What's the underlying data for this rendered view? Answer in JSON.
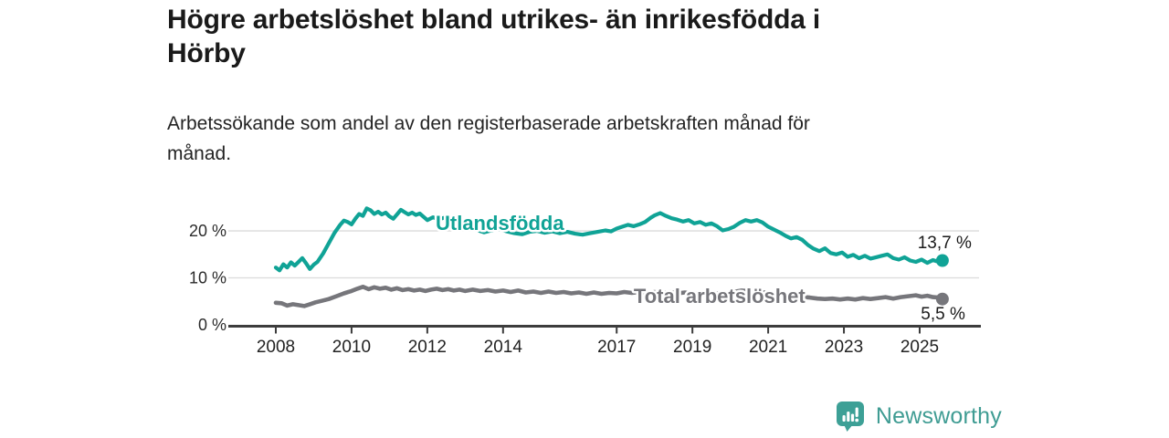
{
  "header": {
    "title_line1": "Högre arbetslöshet bland utrikes- än inrikesfödda i",
    "title_line2": "Hörby",
    "subtitle_line1": "Arbetssökande som andel av den registerbaserade arbetskraften månad för",
    "subtitle_line2": "månad."
  },
  "footer": {
    "brand": "Newsworthy",
    "brand_color": "#3F9C93"
  },
  "chart_data": {
    "type": "line",
    "title": "Högre arbetslöshet bland utrikes- än inrikesfödda i Hörby",
    "subtitle": "Arbetssökande som andel av den registerbaserade arbetskraften månad för månad.",
    "unit": "%",
    "grid": "horizontal-only",
    "legend_position": "inline-labels-on-lines",
    "y_axis": {
      "range": [
        0,
        26
      ],
      "ticks": [
        {
          "value": 0,
          "label": "0 %"
        },
        {
          "value": 10,
          "label": "10 %"
        },
        {
          "value": 20,
          "label": "20 %"
        }
      ]
    },
    "x_axis": {
      "range_years": [
        2006.8,
        2026.6
      ],
      "ticks": [
        {
          "value": 2008,
          "label": "2008"
        },
        {
          "value": 2010,
          "label": "2010"
        },
        {
          "value": 2012,
          "label": "2012"
        },
        {
          "value": 2014,
          "label": "2014"
        },
        {
          "value": 2017,
          "label": "2017"
        },
        {
          "value": 2019,
          "label": "2019"
        },
        {
          "value": 2021,
          "label": "2021"
        },
        {
          "value": 2023,
          "label": "2023"
        },
        {
          "value": 2025,
          "label": "2025"
        }
      ]
    },
    "series": [
      {
        "id": "utlandsfodda",
        "name": "Utlandsfödda",
        "color": "#10A396",
        "line_width": 4.2,
        "end_label": "13,7 %",
        "end_value": 13.7,
        "label_anchor": [
          2012.22,
          20.2
        ],
        "end_label_offset": [
          32,
          -13.5
        ],
        "points": [
          [
            2008.0,
            12.2
          ],
          [
            2008.1,
            11.6
          ],
          [
            2008.2,
            12.9
          ],
          [
            2008.3,
            12.2
          ],
          [
            2008.4,
            13.3
          ],
          [
            2008.5,
            12.6
          ],
          [
            2008.6,
            13.4
          ],
          [
            2008.7,
            14.2
          ],
          [
            2008.8,
            13.1
          ],
          [
            2008.9,
            11.9
          ],
          [
            2009.0,
            12.8
          ],
          [
            2009.1,
            13.4
          ],
          [
            2009.25,
            15.2
          ],
          [
            2009.4,
            17.4
          ],
          [
            2009.55,
            19.6
          ],
          [
            2009.7,
            21.3
          ],
          [
            2009.8,
            22.2
          ],
          [
            2009.9,
            21.9
          ],
          [
            2010.0,
            21.4
          ],
          [
            2010.1,
            22.6
          ],
          [
            2010.2,
            23.6
          ],
          [
            2010.3,
            23.2
          ],
          [
            2010.4,
            24.8
          ],
          [
            2010.5,
            24.4
          ],
          [
            2010.6,
            23.6
          ],
          [
            2010.7,
            24.1
          ],
          [
            2010.8,
            23.5
          ],
          [
            2010.9,
            23.9
          ],
          [
            2011.0,
            23.1
          ],
          [
            2011.1,
            22.6
          ],
          [
            2011.2,
            23.5
          ],
          [
            2011.3,
            24.5
          ],
          [
            2011.4,
            24.0
          ],
          [
            2011.5,
            23.5
          ],
          [
            2011.6,
            23.9
          ],
          [
            2011.7,
            23.4
          ],
          [
            2011.8,
            23.7
          ],
          [
            2011.9,
            23.0
          ],
          [
            2012.0,
            22.3
          ],
          [
            2012.15,
            22.9
          ],
          [
            2012.3,
            22.5
          ],
          [
            2012.45,
            22.8
          ],
          [
            2012.6,
            22.3
          ],
          [
            2012.75,
            21.9
          ],
          [
            2012.9,
            21.3
          ],
          [
            2013.1,
            20.7
          ],
          [
            2013.3,
            20.2
          ],
          [
            2013.5,
            19.7
          ],
          [
            2013.7,
            20.1
          ],
          [
            2013.9,
            20.4
          ],
          [
            2014.1,
            19.9
          ],
          [
            2014.3,
            19.5
          ],
          [
            2014.5,
            19.3
          ],
          [
            2014.7,
            19.8
          ],
          [
            2014.9,
            20.0
          ],
          [
            2015.1,
            19.6
          ],
          [
            2015.3,
            19.9
          ],
          [
            2015.5,
            19.5
          ],
          [
            2015.7,
            19.8
          ],
          [
            2015.9,
            19.4
          ],
          [
            2016.1,
            19.2
          ],
          [
            2016.3,
            19.5
          ],
          [
            2016.5,
            19.8
          ],
          [
            2016.7,
            20.1
          ],
          [
            2016.85,
            19.9
          ],
          [
            2017.0,
            20.5
          ],
          [
            2017.15,
            20.9
          ],
          [
            2017.3,
            21.3
          ],
          [
            2017.45,
            21.0
          ],
          [
            2017.6,
            21.4
          ],
          [
            2017.75,
            21.9
          ],
          [
            2017.9,
            22.8
          ],
          [
            2018.0,
            23.3
          ],
          [
            2018.15,
            23.8
          ],
          [
            2018.3,
            23.2
          ],
          [
            2018.45,
            22.7
          ],
          [
            2018.6,
            22.4
          ],
          [
            2018.75,
            22.0
          ],
          [
            2018.9,
            22.3
          ],
          [
            2019.05,
            21.6
          ],
          [
            2019.2,
            21.9
          ],
          [
            2019.35,
            21.3
          ],
          [
            2019.5,
            21.6
          ],
          [
            2019.65,
            21.0
          ],
          [
            2019.8,
            20.1
          ],
          [
            2019.95,
            20.4
          ],
          [
            2020.1,
            20.9
          ],
          [
            2020.25,
            21.7
          ],
          [
            2020.4,
            22.3
          ],
          [
            2020.55,
            22.0
          ],
          [
            2020.7,
            22.3
          ],
          [
            2020.85,
            21.8
          ],
          [
            2021.0,
            20.9
          ],
          [
            2021.15,
            20.3
          ],
          [
            2021.3,
            19.7
          ],
          [
            2021.45,
            19.0
          ],
          [
            2021.6,
            18.4
          ],
          [
            2021.75,
            18.7
          ],
          [
            2021.9,
            18.1
          ],
          [
            2022.05,
            17.0
          ],
          [
            2022.2,
            16.2
          ],
          [
            2022.35,
            15.7
          ],
          [
            2022.5,
            16.3
          ],
          [
            2022.65,
            15.3
          ],
          [
            2022.8,
            15.0
          ],
          [
            2022.95,
            15.4
          ],
          [
            2023.1,
            14.5
          ],
          [
            2023.25,
            14.9
          ],
          [
            2023.4,
            14.2
          ],
          [
            2023.55,
            14.7
          ],
          [
            2023.7,
            14.1
          ],
          [
            2023.85,
            14.4
          ],
          [
            2024.0,
            14.7
          ],
          [
            2024.15,
            15.0
          ],
          [
            2024.3,
            14.2
          ],
          [
            2024.45,
            13.9
          ],
          [
            2024.6,
            14.4
          ],
          [
            2024.75,
            13.7
          ],
          [
            2024.9,
            13.4
          ],
          [
            2025.05,
            13.9
          ],
          [
            2025.2,
            13.2
          ],
          [
            2025.35,
            13.8
          ],
          [
            2025.5,
            13.4
          ],
          [
            2025.6,
            13.7
          ]
        ]
      },
      {
        "id": "total-arbetsloshet",
        "name": "Total arbetslöshet",
        "color": "#76767B",
        "line_width": 4.6,
        "end_label": "5,5 %",
        "end_value": 5.5,
        "label_anchor": [
          2017.45,
          4.66
        ],
        "end_label_offset": [
          25,
          22.3
        ],
        "points": [
          [
            2008.0,
            4.7
          ],
          [
            2008.15,
            4.6
          ],
          [
            2008.3,
            4.1
          ],
          [
            2008.45,
            4.4
          ],
          [
            2008.6,
            4.2
          ],
          [
            2008.75,
            4.0
          ],
          [
            2008.9,
            4.4
          ],
          [
            2009.05,
            4.8
          ],
          [
            2009.2,
            5.1
          ],
          [
            2009.4,
            5.5
          ],
          [
            2009.6,
            6.1
          ],
          [
            2009.8,
            6.7
          ],
          [
            2010.0,
            7.2
          ],
          [
            2010.15,
            7.7
          ],
          [
            2010.3,
            8.1
          ],
          [
            2010.45,
            7.6
          ],
          [
            2010.6,
            8.0
          ],
          [
            2010.75,
            7.7
          ],
          [
            2010.9,
            7.9
          ],
          [
            2011.05,
            7.5
          ],
          [
            2011.2,
            7.8
          ],
          [
            2011.35,
            7.4
          ],
          [
            2011.5,
            7.6
          ],
          [
            2011.65,
            7.3
          ],
          [
            2011.8,
            7.5
          ],
          [
            2011.95,
            7.2
          ],
          [
            2012.1,
            7.5
          ],
          [
            2012.25,
            7.7
          ],
          [
            2012.4,
            7.4
          ],
          [
            2012.55,
            7.6
          ],
          [
            2012.7,
            7.3
          ],
          [
            2012.85,
            7.5
          ],
          [
            2013.0,
            7.2
          ],
          [
            2013.2,
            7.5
          ],
          [
            2013.4,
            7.2
          ],
          [
            2013.6,
            7.4
          ],
          [
            2013.8,
            7.1
          ],
          [
            2014.0,
            7.3
          ],
          [
            2014.2,
            7.0
          ],
          [
            2014.4,
            7.3
          ],
          [
            2014.6,
            6.9
          ],
          [
            2014.8,
            7.1
          ],
          [
            2015.0,
            6.8
          ],
          [
            2015.2,
            7.1
          ],
          [
            2015.4,
            6.8
          ],
          [
            2015.6,
            7.0
          ],
          [
            2015.8,
            6.7
          ],
          [
            2016.0,
            6.9
          ],
          [
            2016.2,
            6.6
          ],
          [
            2016.4,
            6.9
          ],
          [
            2016.6,
            6.6
          ],
          [
            2016.8,
            6.8
          ],
          [
            2017.0,
            6.7
          ],
          [
            2017.2,
            7.0
          ],
          [
            2017.4,
            6.8
          ],
          [
            2017.6,
            7.0
          ],
          [
            2017.8,
            6.7
          ],
          [
            2018.0,
            7.0
          ],
          [
            2018.2,
            6.8
          ],
          [
            2018.4,
            7.0
          ],
          [
            2018.6,
            6.7
          ],
          [
            2018.8,
            6.9
          ],
          [
            2019.0,
            6.6
          ],
          [
            2019.2,
            6.8
          ],
          [
            2019.5,
            6.6
          ],
          [
            2019.8,
            6.7
          ],
          [
            2020.0,
            6.9
          ],
          [
            2020.3,
            7.3
          ],
          [
            2020.6,
            7.1
          ],
          [
            2020.9,
            6.9
          ],
          [
            2021.2,
            6.5
          ],
          [
            2021.5,
            6.2
          ],
          [
            2021.8,
            6.0
          ],
          [
            2022.1,
            5.8
          ],
          [
            2022.3,
            5.6
          ],
          [
            2022.5,
            5.5
          ],
          [
            2022.7,
            5.6
          ],
          [
            2022.9,
            5.4
          ],
          [
            2023.1,
            5.6
          ],
          [
            2023.3,
            5.4
          ],
          [
            2023.5,
            5.7
          ],
          [
            2023.7,
            5.5
          ],
          [
            2023.9,
            5.7
          ],
          [
            2024.1,
            5.9
          ],
          [
            2024.3,
            5.6
          ],
          [
            2024.5,
            5.9
          ],
          [
            2024.7,
            6.1
          ],
          [
            2024.9,
            6.3
          ],
          [
            2025.05,
            6.0
          ],
          [
            2025.2,
            6.2
          ],
          [
            2025.35,
            5.9
          ],
          [
            2025.5,
            5.8
          ],
          [
            2025.6,
            5.5
          ]
        ]
      }
    ]
  }
}
